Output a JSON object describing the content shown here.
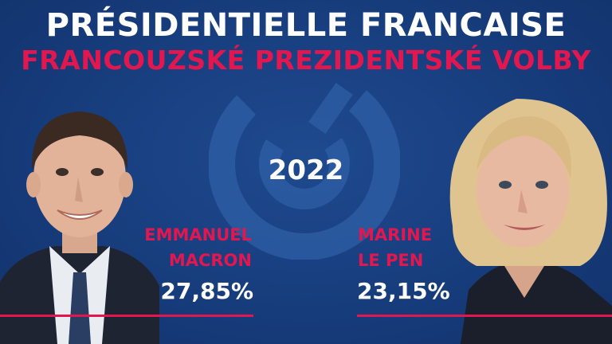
{
  "header": {
    "title": "PRÉSIDENTIELLE FRANCAISE",
    "subtitle": "FRANCOUZSKÉ PREZIDENTSKÉ VOLBY"
  },
  "year": "2022",
  "candidates": [
    {
      "first_name": "EMMANUEL",
      "last_name": "MACRON",
      "percentage": "27,85%",
      "suit_color": "#1f2433",
      "tie_color": "#2a3e63"
    },
    {
      "first_name": "MARINE",
      "last_name": "LE PEN",
      "percentage": "23,15%",
      "jacket_color": "#1b1e2b"
    }
  ],
  "colors": {
    "background": "#173d7d",
    "accent": "#e3174f",
    "text": "#ffffff"
  }
}
